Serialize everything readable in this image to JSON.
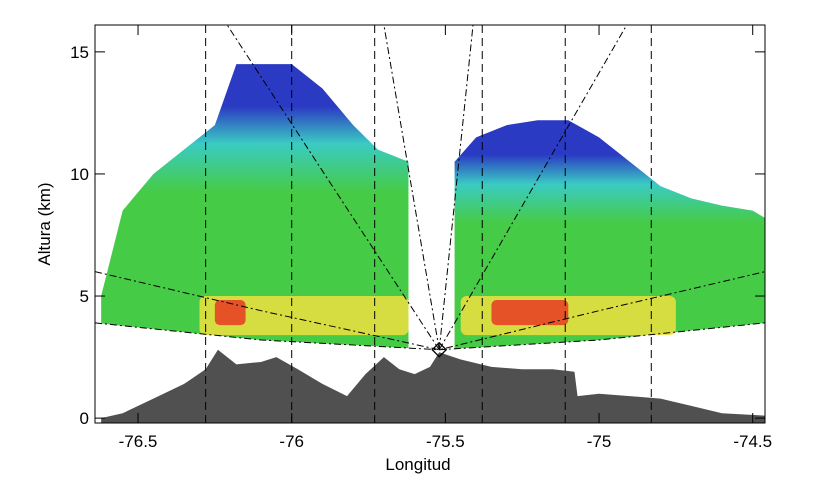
{
  "chart_data": {
    "type": "area",
    "xlabel": "Longitud",
    "ylabel": "Altura (km)",
    "xlim": [
      -76.64,
      -74.46
    ],
    "ylim": [
      -0.2,
      16.1
    ],
    "xticks": [
      -76.5,
      -76.0,
      -75.5,
      -75.0,
      -74.5
    ],
    "yticks": [
      0,
      5,
      10,
      15
    ],
    "x": [
      -76.62,
      -76.55,
      -76.45,
      -76.35,
      -76.25,
      -76.18,
      -76.1,
      -76.0,
      -75.9,
      -75.8,
      -75.72,
      -75.62,
      -75.55,
      -75.47,
      -75.4,
      -75.3,
      -75.2,
      -75.1,
      -75.0,
      -74.9,
      -74.8,
      -74.7,
      -74.6,
      -74.5,
      -74.46
    ],
    "series": [
      {
        "name": "echo",
        "color": "#3cc83c",
        "color_top": "#2030c0",
        "values": [
          5,
          8.5,
          10,
          11,
          12,
          14.5,
          14.5,
          14.5,
          13.5,
          12,
          11,
          10.5,
          null,
          10.5,
          11.5,
          12,
          12.2,
          12.2,
          11.5,
          10.5,
          9.5,
          9,
          8.7,
          8.5,
          8.2
        ]
      }
    ],
    "terrain": {
      "color": "#505050",
      "x": [
        -76.62,
        -76.55,
        -76.45,
        -76.35,
        -76.28,
        -76.24,
        -76.18,
        -76.1,
        -76.05,
        -75.98,
        -75.9,
        -75.82,
        -75.76,
        -75.7,
        -75.65,
        -75.6,
        -75.55,
        -75.52,
        -75.45,
        -75.35,
        -75.25,
        -75.15,
        -75.08,
        -75.07,
        -75.0,
        -74.9,
        -74.8,
        -74.7,
        -74.6,
        -74.46
      ],
      "values": [
        0,
        0.2,
        0.8,
        1.4,
        2.0,
        2.8,
        2.2,
        2.3,
        2.5,
        2.0,
        1.4,
        0.9,
        1.8,
        2.5,
        2.0,
        1.8,
        2.1,
        2.7,
        2.4,
        2.1,
        2.0,
        2.0,
        1.9,
        0.9,
        1.0,
        0.9,
        0.8,
        0.5,
        0.2,
        0.1
      ]
    },
    "beam_arcs": {
      "x": [
        -76.64,
        -76.1,
        -75.52,
        -75.0,
        -74.46
      ],
      "lower": [
        3.9,
        3.2,
        2.8,
        3.2,
        3.9
      ],
      "upper": [
        6.0,
        4.4,
        2.8,
        4.4,
        6.0
      ]
    },
    "bright_band": {
      "color": "#f0e040",
      "core_color": "#e83020",
      "ylim": [
        3.4,
        5.0
      ],
      "segments": [
        [
          -76.3,
          -75.62
        ],
        [
          -75.45,
          -74.75
        ]
      ],
      "cores": [
        [
          -76.25,
          -76.15
        ],
        [
          -75.35,
          -75.1
        ]
      ]
    },
    "radar": {
      "x": -75.52,
      "y": 2.8
    },
    "rays_x_at_top": [
      -76.21,
      -75.7,
      -75.41,
      -74.91
    ],
    "reference_x": [
      -76.28,
      -76.0,
      -75.73,
      -75.38,
      -75.11,
      -74.83
    ]
  }
}
